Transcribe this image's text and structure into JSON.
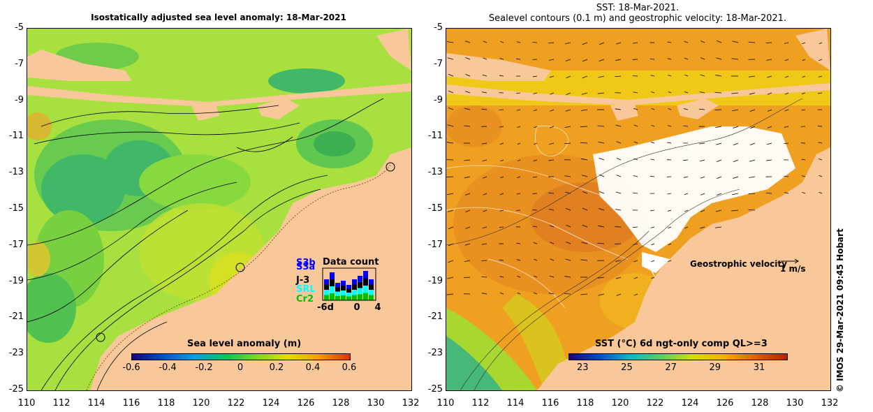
{
  "left": {
    "title": "Isostatically adjusted sea level anomaly: 18-Mar-2021",
    "colorbar": {
      "label": "Sea level anomaly (m)",
      "ticks": [
        "-0.6",
        "-0.4",
        "-0.2",
        "0",
        "0.2",
        "0.4",
        "0.6"
      ],
      "colors": [
        "#1a0080",
        "#0050d0",
        "#00a0e0",
        "#00c860",
        "#7ed820",
        "#e0e000",
        "#f0a000",
        "#e03000"
      ]
    },
    "data_count": {
      "title": "Data count",
      "satellites": [
        "S3b",
        "S3a",
        "J-3",
        "SRL",
        "Cr2"
      ],
      "sat_colors": [
        "#0000ff",
        "#0000ff",
        "#000000",
        "#00ffff",
        "#00c000"
      ],
      "axis_ticks": [
        "-6d",
        "0",
        "4"
      ]
    }
  },
  "right": {
    "title_line1": "SST: 18-Mar-2021.",
    "title_line2": "Sealevel contours (0.1 m) and geostrophic velocity: 18-Mar-2021.",
    "colorbar": {
      "label": "SST (°C) 6d ngt-only comp QL>=3",
      "ticks": [
        "23",
        "25",
        "27",
        "29",
        "31"
      ],
      "colors": [
        "#1a0080",
        "#0050d0",
        "#00c0c0",
        "#60d060",
        "#d8e000",
        "#f0b000",
        "#e06000",
        "#b02000"
      ]
    },
    "velocity_label": "Geostrophic velocity",
    "velocity_unit": "1 m/s"
  },
  "axes": {
    "y_ticks": [
      "-5",
      "-7",
      "-9",
      "-11",
      "-13",
      "-15",
      "-17",
      "-19",
      "-21",
      "-23",
      "-25"
    ],
    "x_ticks": [
      "110",
      "112",
      "114",
      "116",
      "118",
      "120",
      "122",
      "124",
      "126",
      "128",
      "130",
      "132"
    ]
  },
  "credit": "© IMOS 29-Mar-2021 09:45 Hobart",
  "colors": {
    "land": "#f8c89a"
  }
}
